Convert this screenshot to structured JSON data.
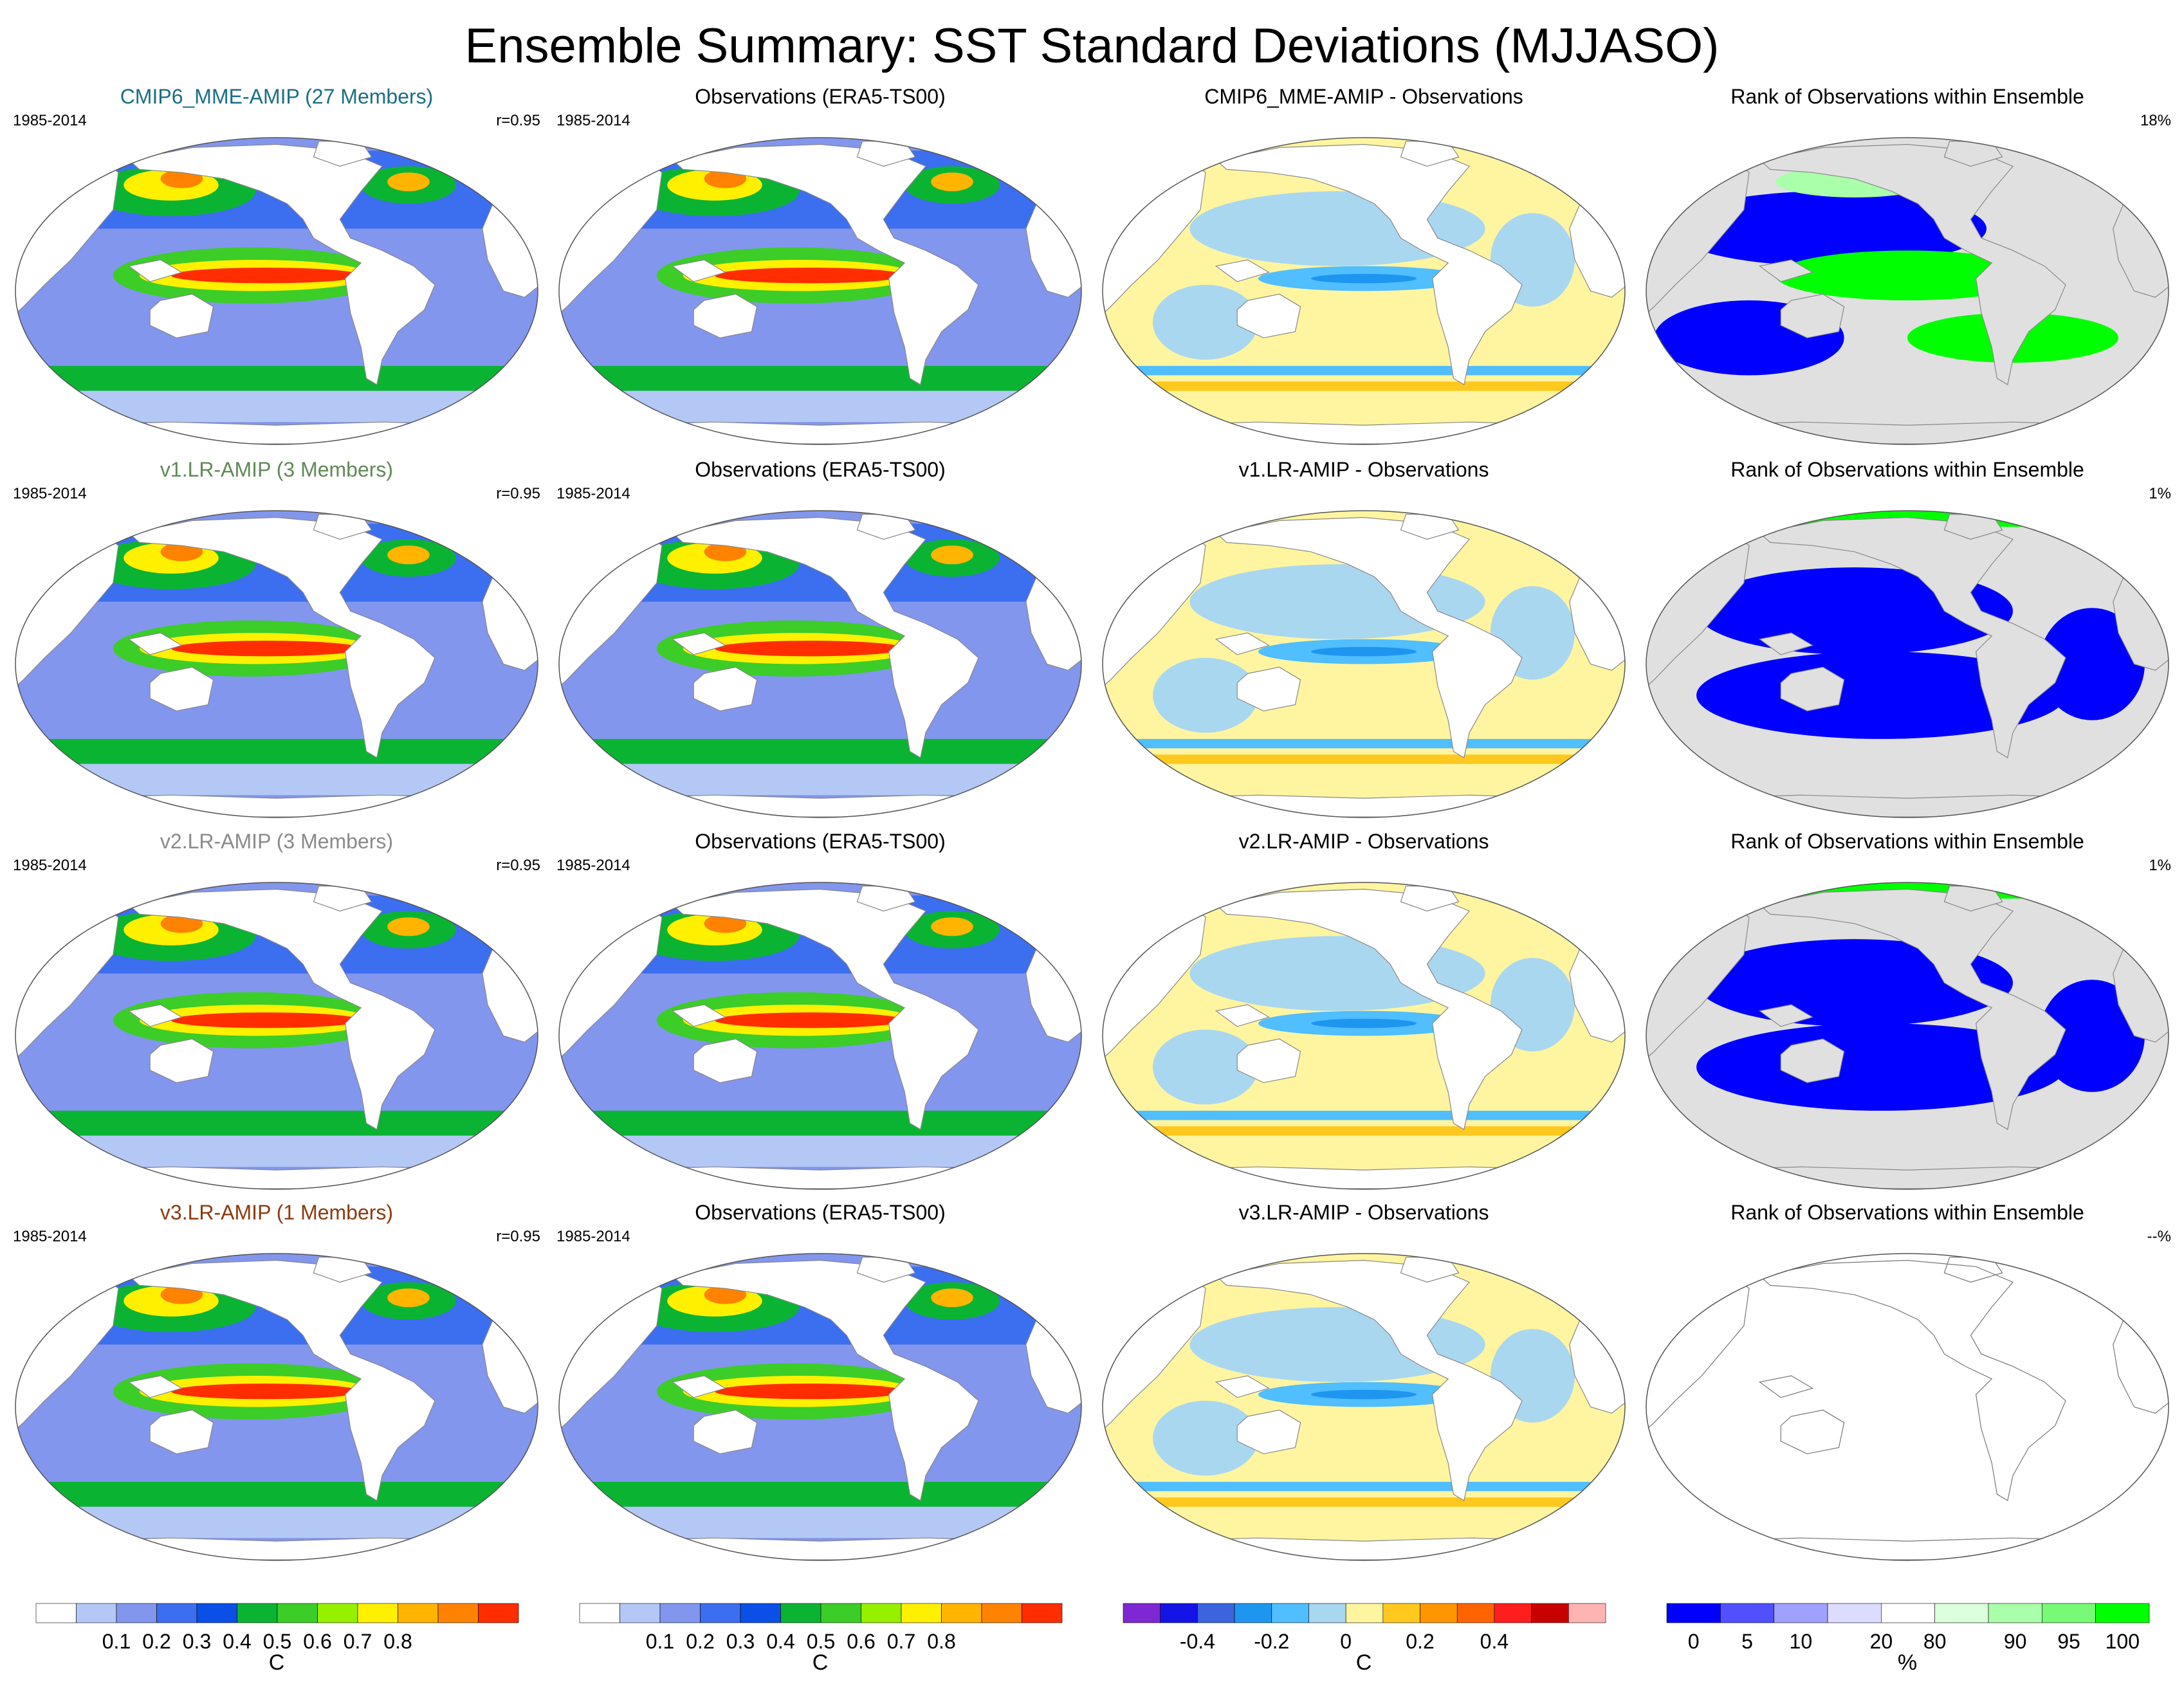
{
  "title": "Ensemble Summary: SST Standard Deviations (MJJASO)",
  "rows": [
    {
      "model": {
        "title": "CMIP6_MME-AMIP (27 Members)",
        "title_color": "#1a6e86",
        "period": "1985-2014",
        "stat": "r=0.95"
      },
      "obs": {
        "title": "Observations (ERA5-TS00)",
        "period": "1985-2014"
      },
      "diff": {
        "title": "CMIP6_MME-AMIP - Observations"
      },
      "rank": {
        "title": "Rank of Observations within Ensemble",
        "stat": "18%"
      }
    },
    {
      "model": {
        "title": "v1.LR-AMIP (3 Members)",
        "title_color": "#5f8a55",
        "period": "1985-2014",
        "stat": "r=0.95"
      },
      "obs": {
        "title": "Observations (ERA5-TS00)",
        "period": "1985-2014"
      },
      "diff": {
        "title": "v1.LR-AMIP - Observations"
      },
      "rank": {
        "title": "Rank of Observations within Ensemble",
        "stat": "1%"
      }
    },
    {
      "model": {
        "title": "v2.LR-AMIP (3 Members)",
        "title_color": "#8a8a8a",
        "period": "1985-2014",
        "stat": "r=0.95"
      },
      "obs": {
        "title": "Observations (ERA5-TS00)",
        "period": "1985-2014"
      },
      "diff": {
        "title": "v2.LR-AMIP - Observations"
      },
      "rank": {
        "title": "Rank of Observations within Ensemble",
        "stat": "1%"
      }
    },
    {
      "model": {
        "title": "v3.LR-AMIP (1 Members)",
        "title_color": "#8b3a10",
        "period": "1985-2014",
        "stat": "r=0.95"
      },
      "obs": {
        "title": "Observations (ERA5-TS00)",
        "period": "1985-2014"
      },
      "diff": {
        "title": "v3.LR-AMIP - Observations"
      },
      "rank": {
        "title": "Rank of Observations within Ensemble",
        "stat": "--%"
      }
    }
  ],
  "colorbars": [
    {
      "name": "sst-std",
      "unit": "C",
      "colors": [
        "#ffffff",
        "#b4c8f5",
        "#8296ee",
        "#3c6ef0",
        "#0a50e6",
        "#0ab432",
        "#3ccd28",
        "#96f000",
        "#fff000",
        "#ffb400",
        "#ff8200",
        "#ff2d00"
      ],
      "ticks": [
        "0.1",
        "0.2",
        "0.3",
        "0.4",
        "0.5",
        "0.6",
        "0.7",
        "0.8"
      ]
    },
    {
      "name": "obs-std",
      "unit": "C",
      "colors": [
        "#ffffff",
        "#b4c8f5",
        "#8296ee",
        "#3c6ef0",
        "#0a50e6",
        "#0ab432",
        "#3ccd28",
        "#96f000",
        "#fff000",
        "#ffb400",
        "#ff8200",
        "#ff2d00"
      ],
      "ticks": [
        "0.1",
        "0.2",
        "0.3",
        "0.4",
        "0.5",
        "0.6",
        "0.7",
        "0.8"
      ]
    },
    {
      "name": "difference",
      "unit": "C",
      "colors": [
        "#7d28d2",
        "#1414e6",
        "#3c64dc",
        "#1e96f0",
        "#50beff",
        "#aad7f0",
        "#fff5a0",
        "#ffc81e",
        "#ff9600",
        "#ff6400",
        "#ff1e1e",
        "#c80000",
        "#ffb4b4"
      ],
      "ticks": [
        "-0.4",
        "-0.2",
        "0",
        "0.2",
        "0.4"
      ]
    },
    {
      "name": "rank",
      "unit": "%",
      "colors": [
        "#0000ff",
        "#5050ff",
        "#a0a0ff",
        "#dcdcff",
        "#ffffff",
        "#dcffdc",
        "#aaffaa",
        "#78fa78",
        "#00ff00"
      ],
      "ticks": [
        "0",
        "5",
        "10",
        "20",
        "80",
        "90",
        "95",
        "100"
      ]
    }
  ]
}
